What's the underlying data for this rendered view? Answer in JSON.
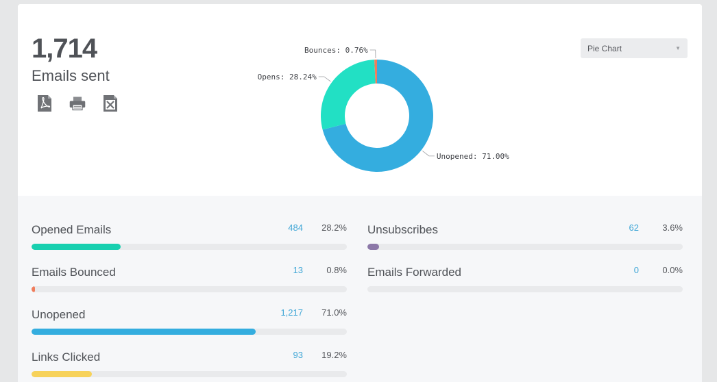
{
  "summary": {
    "count": "1,714",
    "label": "Emails sent",
    "icons": [
      "pdf-icon",
      "print-icon",
      "excel-icon"
    ]
  },
  "view_select": {
    "value": "Pie Chart"
  },
  "chart_data": {
    "type": "pie",
    "slices": [
      {
        "label": "Unopened: 71.00%",
        "value": 71.0,
        "color": "#34addf"
      },
      {
        "label": "Opens: 28.24%",
        "value": 28.24,
        "color": "#22e0c4"
      },
      {
        "label": "Bounces: 0.76%",
        "value": 0.76,
        "color": "#f07d5c"
      }
    ]
  },
  "stats": [
    {
      "name": "Opened Emails",
      "count": "484",
      "pct": "28.2%",
      "fraction": 0.282,
      "color": "#18d0b0"
    },
    {
      "name": "Emails Bounced",
      "count": "13",
      "pct": "0.8%",
      "fraction": 0.008,
      "color": "#f07d5c"
    },
    {
      "name": "Unopened",
      "count": "1,217",
      "pct": "71.0%",
      "fraction": 0.71,
      "color": "#34addf"
    },
    {
      "name": "Links Clicked",
      "count": "93",
      "pct": "19.2%",
      "fraction": 0.192,
      "color": "#f7d25a"
    },
    {
      "name": "Unsubscribes",
      "count": "62",
      "pct": "3.6%",
      "fraction": 0.036,
      "color": "#8c78a8"
    },
    {
      "name": "Emails Forwarded",
      "count": "0",
      "pct": "0.0%",
      "fraction": 0.0,
      "color": "#cccccc"
    }
  ]
}
